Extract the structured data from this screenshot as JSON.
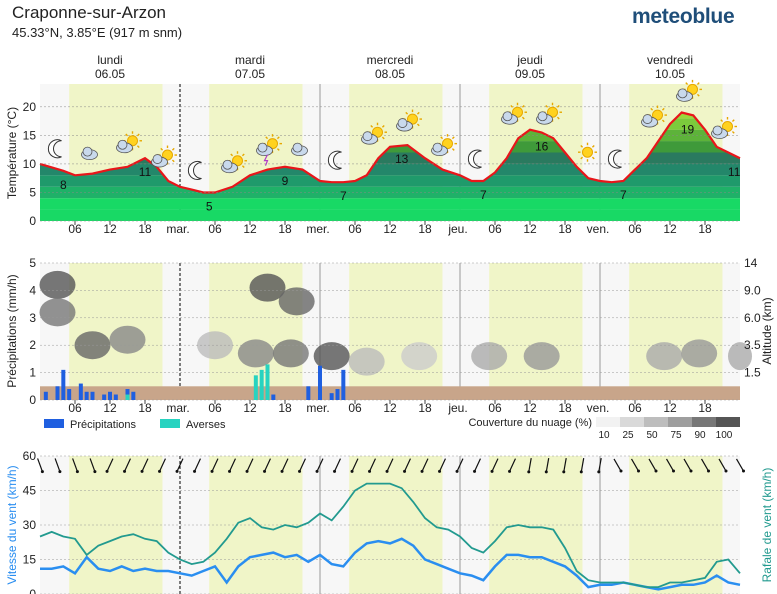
{
  "header": {
    "place": "Craponne-sur-Arzon",
    "coords": "45.33°N, 3.85°E (917 m snm)",
    "brand": "meteoblue"
  },
  "days": [
    {
      "name": "lundi",
      "date": "06.05",
      "abbr": ""
    },
    {
      "name": "mardi",
      "date": "07.05",
      "abbr": "mar."
    },
    {
      "name": "mercredi",
      "date": "08.05",
      "abbr": "mer."
    },
    {
      "name": "jeudi",
      "date": "09.05",
      "abbr": "jeu."
    },
    {
      "name": "vendredi",
      "date": "10.05",
      "abbr": "ven."
    }
  ],
  "hour_ticks": [
    "06",
    "12",
    "18"
  ],
  "colors": {
    "daylight": "#f0f5c8",
    "temp_line": "#e8161a",
    "precip": "#1f5fe0",
    "showers": "#27d3c0",
    "wind_speed": "#2a8ef0",
    "wind_gust": "#229a8f",
    "ground": "#c8a58a"
  },
  "chart_data": [
    {
      "type": "area",
      "ylabel": "Température (°C)",
      "ylim": [
        0,
        24
      ],
      "yticks": [
        0,
        5,
        10,
        15,
        20
      ],
      "x_unit": "hours since 06.05 00:00",
      "x_range": [
        0,
        120
      ],
      "series": [
        {
          "name": "",
          "x": [
            0,
            4,
            6,
            9,
            12,
            15,
            18,
            20,
            22,
            24,
            26,
            28,
            30,
            33,
            36,
            39,
            42,
            45,
            48,
            50,
            52,
            54,
            56,
            58,
            60,
            63,
            66,
            69,
            72,
            74,
            76,
            78,
            80,
            82,
            84,
            86,
            88,
            90,
            92,
            94,
            96,
            98,
            100,
            102,
            104,
            106,
            108,
            110,
            112,
            114,
            116,
            118,
            120
          ],
          "y": [
            10,
            8.8,
            8,
            8.3,
            9,
            9.5,
            11,
            9.5,
            7,
            6,
            5.5,
            5,
            5,
            6,
            8,
            9,
            9.5,
            9,
            7,
            6.8,
            6.8,
            7,
            8,
            11,
            13,
            13.3,
            11,
            9,
            8,
            7,
            7,
            8.5,
            11,
            14.5,
            16,
            15.5,
            14.5,
            12,
            9.5,
            7.5,
            7,
            6.8,
            7,
            9,
            11,
            14,
            17,
            19,
            18.5,
            16,
            13,
            12,
            11
          ]
        }
      ],
      "labels": [
        {
          "x": 4,
          "text": "8"
        },
        {
          "x": 18,
          "text": "11"
        },
        {
          "x": 29,
          "text": "5"
        },
        {
          "x": 42,
          "text": "9"
        },
        {
          "x": 52,
          "text": "7"
        },
        {
          "x": 62,
          "text": "13"
        },
        {
          "x": 76,
          "text": "7"
        },
        {
          "x": 86,
          "text": "16"
        },
        {
          "x": 100,
          "text": "7"
        },
        {
          "x": 111,
          "text": "19"
        },
        {
          "x": 119,
          "text": "11"
        }
      ],
      "icons": [
        "moon",
        "cloudy",
        "sun-cloud",
        "sun-cloud",
        "moon",
        "sun-cloud",
        "sun-storm",
        "cloudy",
        "moon",
        "sun-cloud",
        "sun-cloud",
        "sun-cloud",
        "moon",
        "sun-cloud",
        "sun-cloud",
        "sun",
        "moon",
        "sun-cloud",
        "sun-cloud",
        "sun-cloud"
      ]
    },
    {
      "type": "bar",
      "ylabel": "Précipitations (mm/h)",
      "y2label": "Altitude (km)",
      "ylim": [
        0,
        5
      ],
      "yticks": [
        0,
        1,
        2,
        3,
        4,
        5
      ],
      "y2ticks": [
        "",
        "1.5",
        "3.5",
        "6.0",
        "9.0",
        "14"
      ],
      "series": [
        {
          "name": "Précipitations",
          "x": [
            1,
            3,
            4,
            5,
            7,
            8,
            9,
            11,
            12,
            13,
            15,
            16,
            40,
            46,
            48,
            50,
            51,
            52
          ],
          "values": [
            0.3,
            0.5,
            1.1,
            0.4,
            0.6,
            0.3,
            0.3,
            0.2,
            0.3,
            0.2,
            0.4,
            0.3,
            0.2,
            0.5,
            1.25,
            0.25,
            0.4,
            1.1
          ]
        },
        {
          "name": "Averses",
          "x": [
            15,
            37,
            38,
            39
          ],
          "values": [
            0.2,
            0.9,
            1.1,
            1.3
          ]
        }
      ],
      "cloud_legend_title": "Couverture du nuage (%)",
      "cloud_levels": [
        "10",
        "25",
        "50",
        "75",
        "90",
        "100"
      ]
    },
    {
      "type": "line",
      "ylabel": "Vitesse du vent (km/h)",
      "y2label": "Rafale de vent (km/h)",
      "ylim": [
        0,
        60
      ],
      "yticks": [
        0,
        15,
        30,
        45,
        60
      ],
      "series": [
        {
          "name": "Vitesse du vent",
          "x": [
            0,
            2,
            4,
            6,
            8,
            10,
            12,
            14,
            16,
            18,
            20,
            22,
            24,
            26,
            28,
            30,
            32,
            34,
            36,
            38,
            40,
            42,
            44,
            46,
            48,
            50,
            52,
            54,
            56,
            58,
            60,
            62,
            64,
            66,
            68,
            70,
            72,
            74,
            76,
            78,
            80,
            82,
            84,
            86,
            88,
            90,
            92,
            94,
            96,
            98,
            100,
            102,
            104,
            106,
            108,
            110,
            112,
            114,
            116,
            118,
            120
          ],
          "y": [
            11,
            11,
            12,
            9,
            16,
            11,
            10,
            12,
            10,
            11,
            10,
            10,
            9,
            8,
            10,
            12,
            5,
            12,
            16,
            17,
            18,
            16,
            17,
            14,
            17,
            13,
            12,
            18,
            22,
            23,
            22,
            24,
            21,
            15,
            13,
            11,
            9,
            8,
            6,
            12,
            17,
            17,
            16,
            16,
            14,
            12,
            8,
            3,
            4,
            4,
            5,
            4,
            3,
            2,
            3,
            4,
            4,
            5,
            8,
            5,
            4
          ]
        },
        {
          "name": "Rafale de vent",
          "x": [
            0,
            2,
            4,
            6,
            8,
            10,
            12,
            14,
            16,
            18,
            20,
            22,
            24,
            26,
            28,
            30,
            32,
            34,
            36,
            38,
            40,
            42,
            44,
            46,
            48,
            50,
            52,
            54,
            56,
            58,
            60,
            62,
            64,
            66,
            68,
            70,
            72,
            74,
            76,
            78,
            80,
            82,
            84,
            86,
            88,
            90,
            92,
            94,
            96,
            98,
            100,
            102,
            104,
            106,
            108,
            110,
            112,
            114,
            116,
            118,
            120
          ],
          "y": [
            25,
            27,
            25,
            24,
            17,
            21,
            23,
            25,
            26,
            24,
            23,
            18,
            15,
            13,
            14,
            18,
            24,
            31,
            33,
            29,
            28,
            30,
            29,
            31,
            35,
            32,
            38,
            45,
            48,
            48,
            48,
            46,
            40,
            33,
            29,
            28,
            25,
            20,
            18,
            23,
            29,
            30,
            29,
            29,
            28,
            20,
            10,
            6,
            5,
            5,
            5,
            4,
            3,
            3,
            5,
            5,
            6,
            7,
            14,
            15,
            9
          ]
        }
      ],
      "direction_arrows": true
    }
  ]
}
